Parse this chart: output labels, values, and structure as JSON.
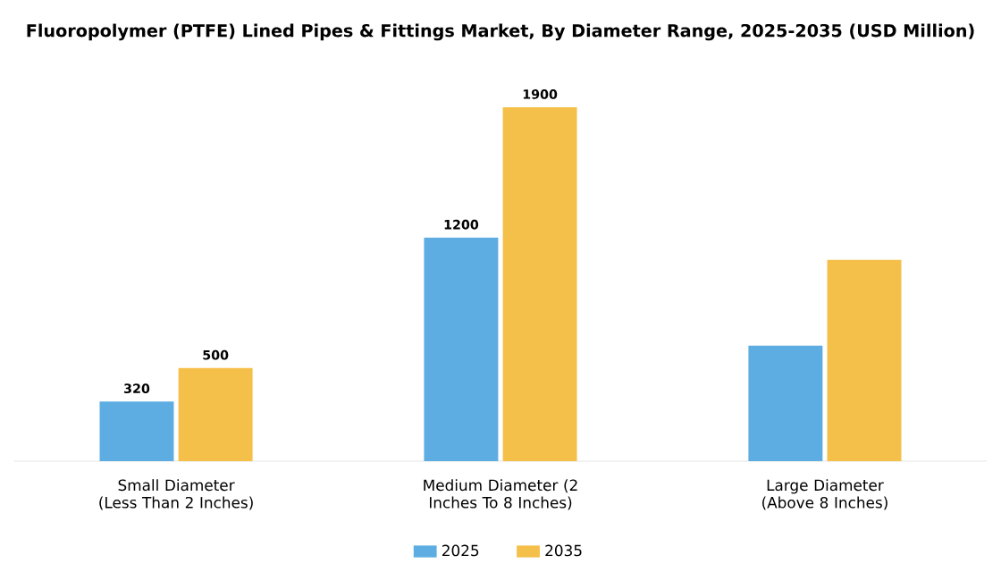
{
  "chart_data": {
    "type": "bar",
    "title": "Fluoropolymer (PTFE) Lined Pipes & Fittings Market, By Diameter Range, 2025-2035 (USD Million)",
    "categories": [
      "Small Diameter (Less Than 2 Inches)",
      "Medium Diameter (2 Inches To 8 Inches)",
      "Large Diameter (Above 8 Inches)"
    ],
    "series": [
      {
        "name": "2025",
        "color": "#5dade2",
        "values": [
          320,
          1200,
          620
        ],
        "value_labels": [
          "320",
          "1200",
          null
        ]
      },
      {
        "name": "2035",
        "color": "#f5c04a",
        "values": [
          500,
          1900,
          1080
        ],
        "value_labels": [
          "500",
          "1900",
          null
        ]
      }
    ],
    "legend": "bottom"
  }
}
